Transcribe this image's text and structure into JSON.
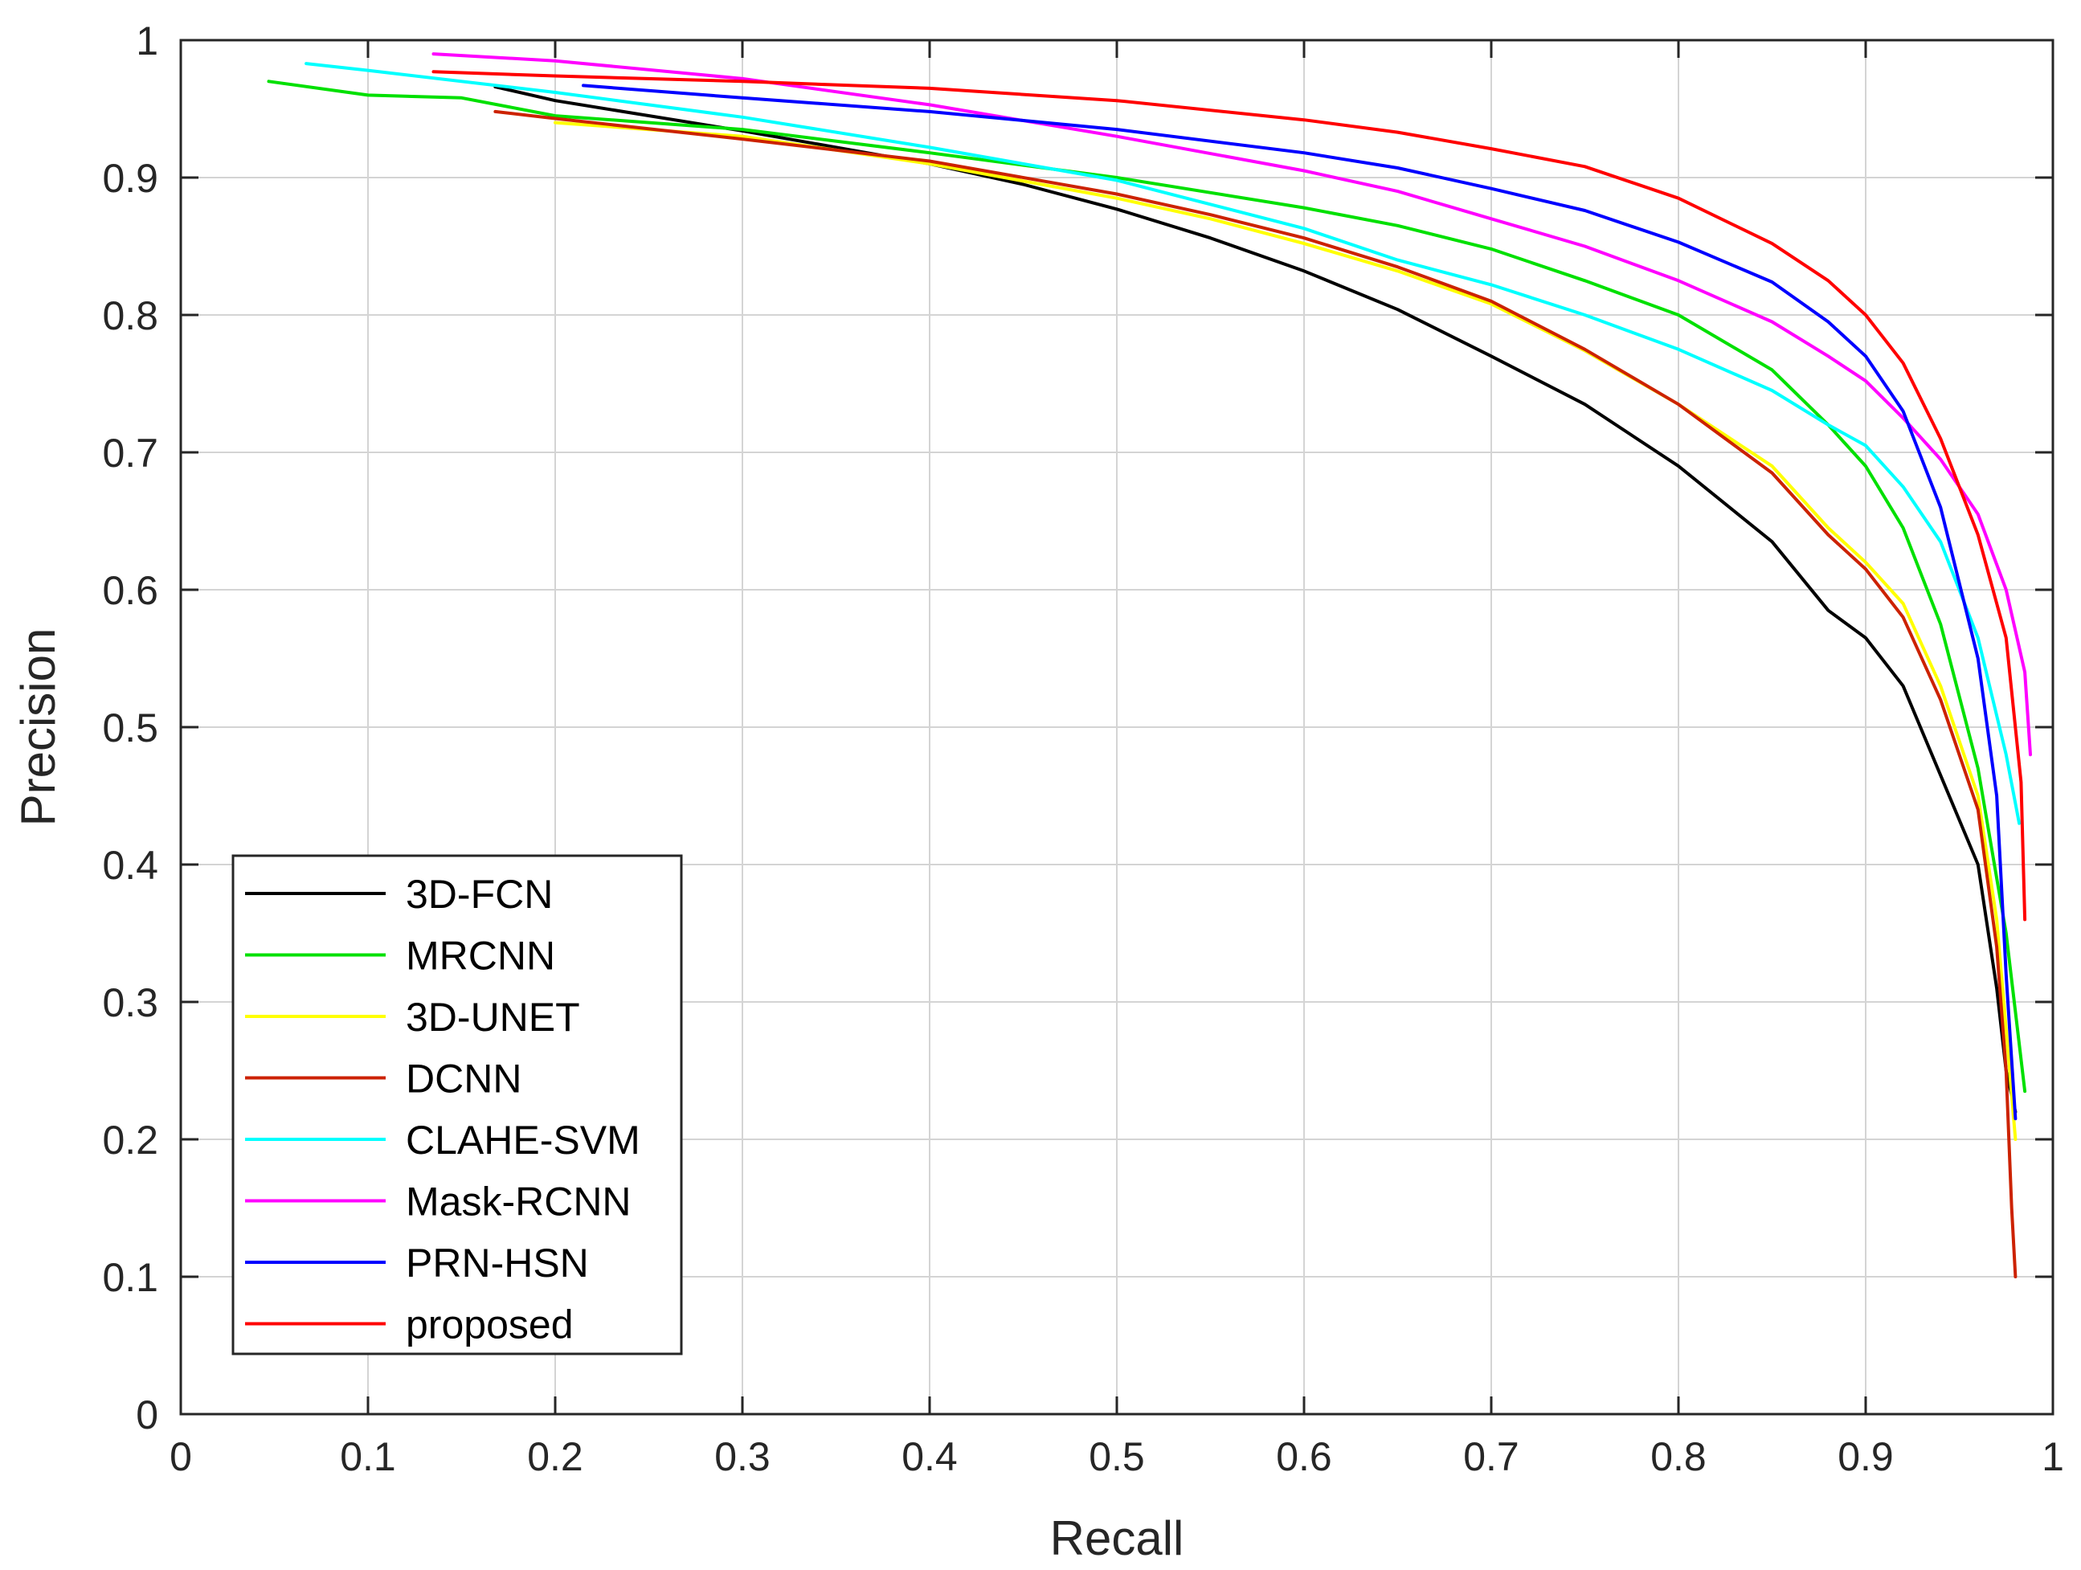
{
  "chart_data": {
    "type": "line",
    "title": "",
    "xlabel": "Recall",
    "ylabel": "Precision",
    "xlim": [
      0,
      1
    ],
    "ylim": [
      0,
      1
    ],
    "grid": true,
    "legend_position": "bottom-left",
    "xticks": [
      "0",
      "0.1",
      "0.2",
      "0.3",
      "0.4",
      "0.5",
      "0.6",
      "0.7",
      "0.8",
      "0.9",
      "1"
    ],
    "yticks": [
      "0",
      "0.1",
      "0.2",
      "0.3",
      "0.4",
      "0.5",
      "0.6",
      "0.7",
      "0.8",
      "0.9",
      "1"
    ],
    "series": [
      {
        "name": "3D-FCN",
        "color": "#000000",
        "x": [
          0.168,
          0.2,
          0.3,
          0.4,
          0.45,
          0.5,
          0.55,
          0.6,
          0.65,
          0.7,
          0.75,
          0.8,
          0.85,
          0.88,
          0.9,
          0.92,
          0.94,
          0.96,
          0.97,
          0.975,
          0.98
        ],
        "y": [
          0.966,
          0.956,
          0.934,
          0.91,
          0.895,
          0.877,
          0.856,
          0.832,
          0.804,
          0.77,
          0.735,
          0.69,
          0.635,
          0.585,
          0.565,
          0.53,
          0.465,
          0.4,
          0.31,
          0.25,
          0.22
        ]
      },
      {
        "name": "MRCNN",
        "color": "#00e000",
        "x": [
          0.047,
          0.1,
          0.15,
          0.2,
          0.3,
          0.4,
          0.5,
          0.6,
          0.65,
          0.7,
          0.75,
          0.8,
          0.85,
          0.88,
          0.9,
          0.92,
          0.94,
          0.96,
          0.975,
          0.985
        ],
        "y": [
          0.97,
          0.96,
          0.958,
          0.945,
          0.935,
          0.918,
          0.9,
          0.878,
          0.865,
          0.848,
          0.825,
          0.8,
          0.76,
          0.72,
          0.69,
          0.645,
          0.575,
          0.47,
          0.35,
          0.235
        ]
      },
      {
        "name": "3D-UNET",
        "color": "#ffff00",
        "x": [
          0.2,
          0.3,
          0.4,
          0.5,
          0.55,
          0.6,
          0.65,
          0.7,
          0.75,
          0.8,
          0.85,
          0.88,
          0.9,
          0.92,
          0.94,
          0.96,
          0.97,
          0.975,
          0.98
        ],
        "y": [
          0.94,
          0.93,
          0.91,
          0.885,
          0.87,
          0.852,
          0.832,
          0.808,
          0.774,
          0.735,
          0.69,
          0.645,
          0.62,
          0.59,
          0.53,
          0.45,
          0.36,
          0.28,
          0.2
        ]
      },
      {
        "name": "DCNN",
        "color": "#cc2200",
        "x": [
          0.168,
          0.2,
          0.3,
          0.4,
          0.5,
          0.55,
          0.6,
          0.65,
          0.7,
          0.75,
          0.8,
          0.85,
          0.88,
          0.9,
          0.92,
          0.94,
          0.96,
          0.97,
          0.975,
          0.978,
          0.98
        ],
        "y": [
          0.948,
          0.943,
          0.928,
          0.912,
          0.888,
          0.873,
          0.856,
          0.835,
          0.81,
          0.775,
          0.735,
          0.685,
          0.64,
          0.615,
          0.58,
          0.52,
          0.44,
          0.34,
          0.25,
          0.15,
          0.1
        ]
      },
      {
        "name": "CLAHE-SVM",
        "color": "#00ffff",
        "x": [
          0.067,
          0.1,
          0.2,
          0.3,
          0.4,
          0.5,
          0.6,
          0.65,
          0.7,
          0.75,
          0.8,
          0.85,
          0.88,
          0.9,
          0.92,
          0.94,
          0.96,
          0.975,
          0.982
        ],
        "y": [
          0.983,
          0.978,
          0.962,
          0.944,
          0.922,
          0.898,
          0.863,
          0.84,
          0.822,
          0.8,
          0.775,
          0.745,
          0.72,
          0.705,
          0.675,
          0.635,
          0.565,
          0.48,
          0.43
        ]
      },
      {
        "name": "Mask-RCNN",
        "color": "#ff00ff",
        "x": [
          0.135,
          0.2,
          0.3,
          0.4,
          0.5,
          0.6,
          0.65,
          0.7,
          0.75,
          0.8,
          0.85,
          0.88,
          0.9,
          0.92,
          0.94,
          0.96,
          0.975,
          0.985,
          0.988
        ],
        "y": [
          0.99,
          0.985,
          0.972,
          0.953,
          0.93,
          0.905,
          0.89,
          0.87,
          0.85,
          0.825,
          0.795,
          0.77,
          0.752,
          0.725,
          0.695,
          0.655,
          0.6,
          0.54,
          0.48
        ]
      },
      {
        "name": "PRN-HSN",
        "color": "#0000ff",
        "x": [
          0.215,
          0.3,
          0.4,
          0.5,
          0.6,
          0.65,
          0.7,
          0.75,
          0.8,
          0.85,
          0.88,
          0.9,
          0.92,
          0.94,
          0.96,
          0.97,
          0.975,
          0.98
        ],
        "y": [
          0.967,
          0.958,
          0.948,
          0.935,
          0.918,
          0.907,
          0.892,
          0.876,
          0.853,
          0.824,
          0.795,
          0.77,
          0.73,
          0.66,
          0.55,
          0.45,
          0.32,
          0.215
        ]
      },
      {
        "name": "proposed",
        "color": "#ff0000",
        "x": [
          0.135,
          0.2,
          0.3,
          0.4,
          0.5,
          0.6,
          0.65,
          0.7,
          0.75,
          0.8,
          0.85,
          0.88,
          0.9,
          0.92,
          0.94,
          0.96,
          0.975,
          0.983,
          0.985
        ],
        "y": [
          0.977,
          0.974,
          0.97,
          0.965,
          0.956,
          0.942,
          0.933,
          0.921,
          0.908,
          0.885,
          0.852,
          0.825,
          0.8,
          0.765,
          0.71,
          0.64,
          0.565,
          0.46,
          0.36
        ]
      }
    ]
  }
}
